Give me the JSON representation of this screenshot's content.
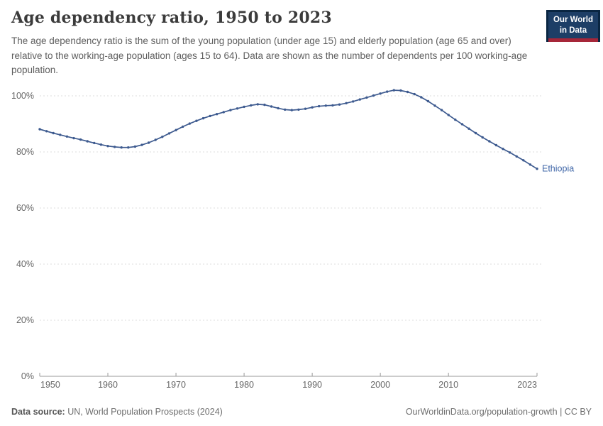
{
  "header": {
    "title": "Age dependency ratio, 1950 to 2023",
    "subtitle": "The age dependency ratio is the sum of the young population (under age 15) and elderly population (age 65 and over) relative to the working-age population (ages 15 to 64). Data are shown as the number of dependents per 100 working-age population.",
    "logo": {
      "line1": "Our World",
      "line2": "in Data"
    }
  },
  "chart_data": {
    "type": "line",
    "title": "Age dependency ratio, 1950 to 2023",
    "xlabel": "",
    "ylabel": "",
    "xlim": [
      1950,
      2023
    ],
    "ylim": [
      0,
      100
    ],
    "grid": "horizontal-dashed",
    "legend": "end-of-line-label",
    "ytick_values": [
      0,
      20,
      40,
      60,
      80,
      100
    ],
    "ytick_labels": [
      "0%",
      "20%",
      "40%",
      "60%",
      "80%",
      "100%"
    ],
    "xtick_values": [
      1950,
      1960,
      1970,
      1980,
      1990,
      2000,
      2010,
      2023
    ],
    "xtick_labels": [
      "1950",
      "1960",
      "1970",
      "1980",
      "1990",
      "2000",
      "2010",
      "2023"
    ],
    "series": [
      {
        "name": "Ethiopia",
        "color": "#3d5a8f",
        "label_color": "#4268a9",
        "x": [
          1950,
          1951,
          1952,
          1953,
          1954,
          1955,
          1956,
          1957,
          1958,
          1959,
          1960,
          1961,
          1962,
          1963,
          1964,
          1965,
          1966,
          1967,
          1968,
          1969,
          1970,
          1971,
          1972,
          1973,
          1974,
          1975,
          1976,
          1977,
          1978,
          1979,
          1980,
          1981,
          1982,
          1983,
          1984,
          1985,
          1986,
          1987,
          1988,
          1989,
          1990,
          1991,
          1992,
          1993,
          1994,
          1995,
          1996,
          1997,
          1998,
          1999,
          2000,
          2001,
          2002,
          2003,
          2004,
          2005,
          2006,
          2007,
          2008,
          2009,
          2010,
          2011,
          2012,
          2013,
          2014,
          2015,
          2016,
          2017,
          2018,
          2019,
          2020,
          2021,
          2022,
          2023
        ],
        "values": [
          88.1,
          87.4,
          86.7,
          86.1,
          85.5,
          84.9,
          84.4,
          83.8,
          83.2,
          82.6,
          82.1,
          81.8,
          81.6,
          81.6,
          81.9,
          82.5,
          83.3,
          84.3,
          85.4,
          86.6,
          87.8,
          89.0,
          90.1,
          91.1,
          92.0,
          92.8,
          93.5,
          94.2,
          94.9,
          95.5,
          96.1,
          96.6,
          97.0,
          96.8,
          96.2,
          95.6,
          95.1,
          94.9,
          95.1,
          95.4,
          95.9,
          96.3,
          96.5,
          96.6,
          96.9,
          97.4,
          98.0,
          98.7,
          99.4,
          100.1,
          100.8,
          101.5,
          102.0,
          101.9,
          101.4,
          100.6,
          99.5,
          98.1,
          96.5,
          94.9,
          93.2,
          91.5,
          89.9,
          88.3,
          86.7,
          85.2,
          83.8,
          82.4,
          81.1,
          79.8,
          78.4,
          77.0,
          75.5,
          74.0
        ]
      }
    ]
  },
  "footer": {
    "source_label": "Data source:",
    "source_text": " UN, World Population Prospects (2024)",
    "link_text": "OurWorldinData.org/population-growth | CC BY"
  },
  "colors": {
    "line": "#3d5a8f",
    "series_label": "#4268a9",
    "grid": "#dcdcdc",
    "axis": "#999999",
    "tick_text": "#666666",
    "logo_bg": "#1d3e66",
    "logo_border": "#0a2642",
    "logo_stripe": "#a62639"
  }
}
